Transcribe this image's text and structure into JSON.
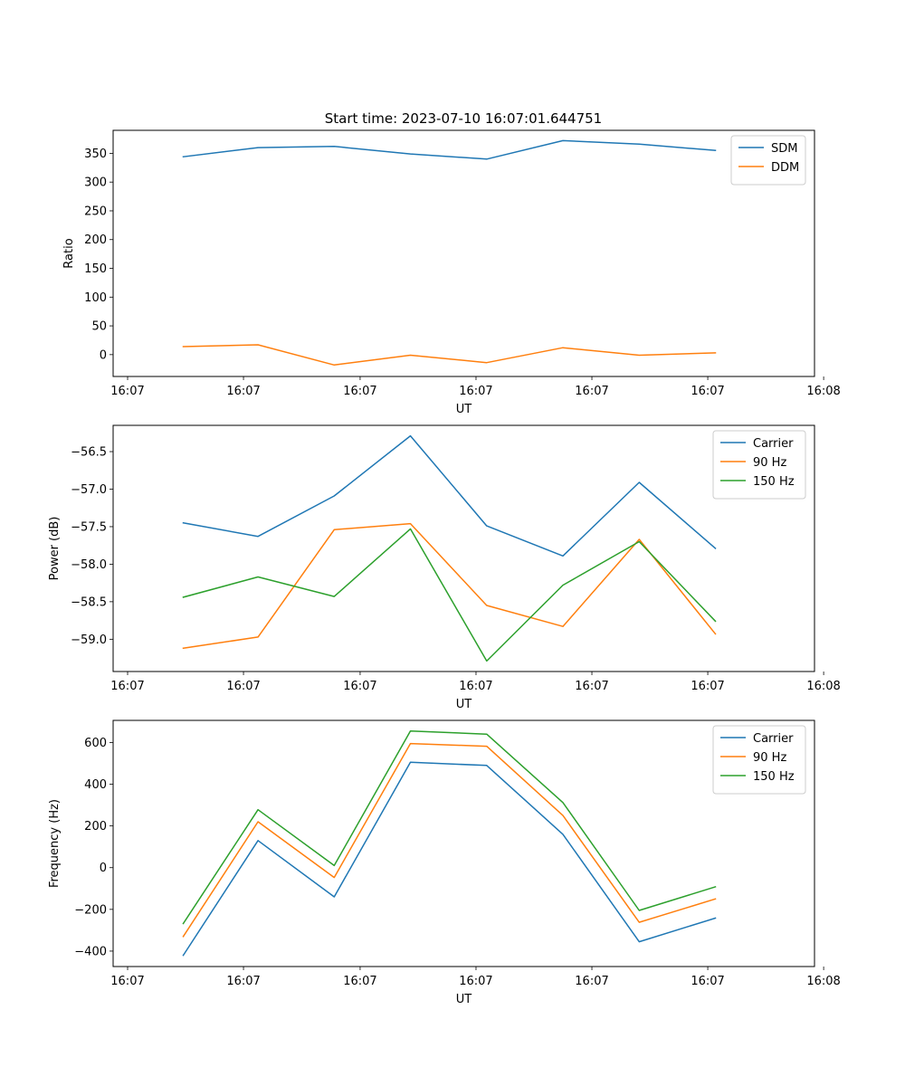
{
  "figure_title": "Start time: 2023-07-10 16:07:01.644751",
  "chart_data": [
    {
      "type": "line",
      "title": "Start time: 2023-07-10 16:07:01.644751",
      "xlabel": "UT",
      "ylabel": "Ratio",
      "x": [
        0.92,
        1.9,
        2.9,
        3.9,
        4.9,
        5.9,
        6.9,
        7.9
      ],
      "xlim": [
        0,
        9.2
      ],
      "xticks": [
        0.19,
        1.71,
        3.24,
        4.76,
        6.28,
        7.8,
        9.32
      ],
      "xtick_labels": [
        "16:07",
        "16:07",
        "16:07",
        "16:07",
        "16:07",
        "16:07",
        "16:08"
      ],
      "ylim": [
        -38,
        390
      ],
      "yticks": [
        0,
        50,
        100,
        150,
        200,
        250,
        300,
        350
      ],
      "ytick_labels": [
        "0",
        "50",
        "100",
        "150",
        "200",
        "250",
        "300",
        "350"
      ],
      "legend_position": "top-right",
      "series": [
        {
          "name": "SDM",
          "color": "#1f77b4",
          "values": [
            344,
            360,
            362,
            349,
            340,
            372,
            366,
            355
          ]
        },
        {
          "name": "DDM",
          "color": "#ff7f0e",
          "values": [
            14,
            17,
            -18,
            -1,
            -14,
            12,
            -1,
            3
          ]
        }
      ]
    },
    {
      "type": "line",
      "title": "",
      "xlabel": "UT",
      "ylabel": "Power (dB)",
      "x": [
        0.92,
        1.9,
        2.9,
        3.9,
        4.9,
        5.9,
        6.9,
        7.9
      ],
      "xlim": [
        0,
        9.2
      ],
      "xticks": [
        0.19,
        1.71,
        3.24,
        4.76,
        6.28,
        7.8,
        9.32
      ],
      "xtick_labels": [
        "16:07",
        "16:07",
        "16:07",
        "16:07",
        "16:07",
        "16:07",
        "16:08"
      ],
      "ylim": [
        -59.43,
        -56.15
      ],
      "yticks": [
        -59.0,
        -58.5,
        -58.0,
        -57.5,
        -57.0,
        -56.5
      ],
      "ytick_labels": [
        "−59.0",
        "−58.5",
        "−58.0",
        "−57.5",
        "−57.0",
        "−56.5"
      ],
      "legend_position": "top-right",
      "series": [
        {
          "name": "Carrier",
          "color": "#1f77b4",
          "values": [
            -57.45,
            -57.63,
            -57.09,
            -56.29,
            -57.49,
            -57.89,
            -56.91,
            -57.79
          ]
        },
        {
          "name": "90 Hz",
          "color": "#ff7f0e",
          "values": [
            -59.12,
            -58.97,
            -57.54,
            -57.46,
            -58.55,
            -58.83,
            -57.67,
            -58.93
          ]
        },
        {
          "name": "150 Hz",
          "color": "#2ca02c",
          "values": [
            -58.44,
            -58.17,
            -58.43,
            -57.53,
            -59.29,
            -58.28,
            -57.7,
            -58.76
          ]
        }
      ]
    },
    {
      "type": "line",
      "title": "",
      "xlabel": "UT",
      "ylabel": "Frequency (Hz)",
      "x": [
        0.92,
        1.9,
        2.9,
        3.9,
        4.9,
        5.9,
        6.9,
        7.9
      ],
      "xlim": [
        0,
        9.2
      ],
      "xticks": [
        0.19,
        1.71,
        3.24,
        4.76,
        6.28,
        7.8,
        9.32
      ],
      "xtick_labels": [
        "16:07",
        "16:07",
        "16:07",
        "16:07",
        "16:07",
        "16:07",
        "16:08"
      ],
      "ylim": [
        -474,
        706
      ],
      "yticks": [
        -400,
        -200,
        0,
        200,
        400,
        600
      ],
      "ytick_labels": [
        "−400",
        "−200",
        "0",
        "200",
        "400",
        "600"
      ],
      "legend_position": "top-right",
      "series": [
        {
          "name": "Carrier",
          "color": "#1f77b4",
          "values": [
            -420,
            130,
            -140,
            505,
            490,
            160,
            -355,
            -242
          ]
        },
        {
          "name": "90 Hz",
          "color": "#ff7f0e",
          "values": [
            -330,
            220,
            -47,
            595,
            582,
            250,
            -262,
            -150
          ]
        },
        {
          "name": "150 Hz",
          "color": "#2ca02c",
          "values": [
            -268,
            278,
            10,
            655,
            640,
            312,
            -205,
            -92
          ]
        }
      ]
    }
  ]
}
